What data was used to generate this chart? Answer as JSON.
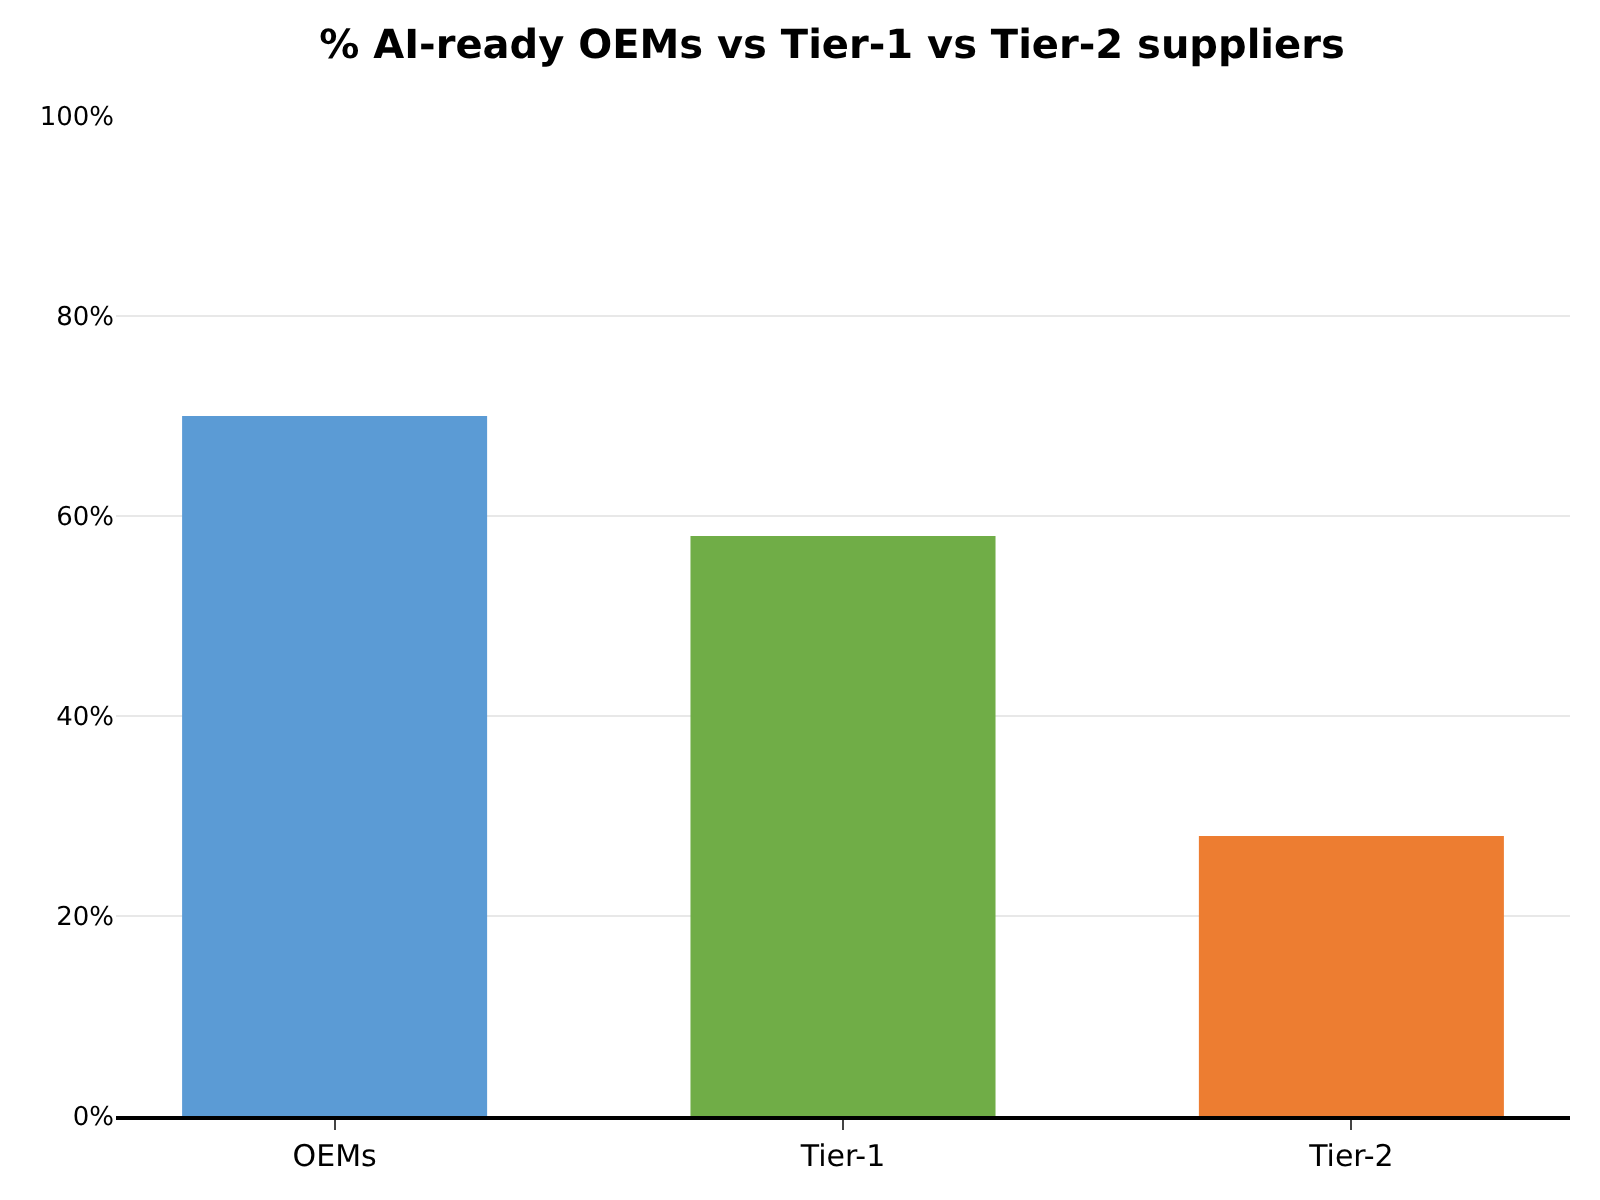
{
  "chart_data": {
    "type": "bar",
    "title": "% AI-ready OEMs vs Tier-1 vs Tier-2 suppliers",
    "categories": [
      "OEMs",
      "Tier-1",
      "Tier-2"
    ],
    "values": [
      70,
      58,
      28
    ],
    "colors": [
      "#5b9bd5",
      "#70ad47",
      "#ed7d31"
    ],
    "ylim": [
      0,
      100
    ],
    "yticks": [
      {
        "value": 0,
        "label": "0%"
      },
      {
        "value": 20,
        "label": "20%"
      },
      {
        "value": 40,
        "label": "40%"
      },
      {
        "value": 60,
        "label": "60%"
      },
      {
        "value": 80,
        "label": "80%"
      },
      {
        "value": 100,
        "label": "100%"
      }
    ],
    "grid": "y"
  }
}
